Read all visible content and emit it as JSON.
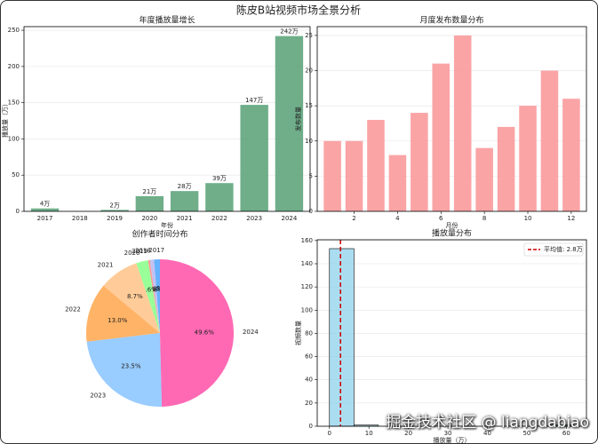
{
  "title": "陈皮B站视频市场全景分析",
  "watermark": "掘金技术社区 @ liangdabiao",
  "chart_data": [
    {
      "type": "bar",
      "title": "年度播放量增长",
      "xlabel": "年份",
      "ylabel": "播放量（万）",
      "categories": [
        "2017",
        "2018",
        "2019",
        "2020",
        "2021",
        "2022",
        "2023",
        "2024"
      ],
      "values": [
        4,
        0,
        2,
        21,
        28,
        39,
        147,
        242
      ],
      "value_labels": [
        "4万",
        null,
        "2万",
        "21万",
        "28万",
        "39万",
        "147万",
        "242万"
      ],
      "color": "#5fa57c",
      "ylim": [
        0,
        255
      ],
      "yticks": [
        0,
        50,
        100,
        150,
        200,
        250
      ],
      "grid": true
    },
    {
      "type": "bar",
      "title": "月度发布数量分布",
      "xlabel": "月份",
      "ylabel": "发布数量",
      "x": [
        1,
        2,
        3,
        4,
        5,
        6,
        7,
        8,
        9,
        10,
        11,
        12
      ],
      "values": [
        10,
        10,
        13,
        8,
        14,
        21,
        25,
        9,
        12,
        15,
        20,
        16
      ],
      "color": "#f99a9c",
      "xlim": [
        0.3,
        12.7
      ],
      "xticks": [
        2,
        4,
        6,
        8,
        10,
        12
      ],
      "ylim": [
        0,
        26.25
      ],
      "yticks": [
        0,
        5,
        10,
        15,
        20,
        25
      ],
      "grid": true
    },
    {
      "type": "pie",
      "title": "创作者时间分布",
      "categories": [
        "2017",
        "2018",
        "2019",
        "2020",
        "2021",
        "2022",
        "2023",
        "2024"
      ],
      "values": [
        1.3,
        0.9,
        0.4,
        2.6,
        8.7,
        13.0,
        23.5,
        49.6
      ],
      "value_labels": [
        "1.3%",
        "0.9%",
        "0.4%",
        "2.6%",
        "8.7%",
        "13.0%",
        "23.5%",
        "49.6%"
      ],
      "colors": [
        "#66b3ff",
        "#c2c2f0",
        "#ff9999",
        "#99ff99",
        "#ffcc99",
        "#ffb366",
        "#99ccff",
        "#ff69b4"
      ]
    },
    {
      "type": "histogram",
      "title": "播放量分布",
      "xlabel": "播放量（万）",
      "ylabel": "视频数量",
      "bins": [
        0,
        6.2,
        12.4,
        18.6,
        24.8,
        31,
        37.2,
        43.4,
        49.6,
        55.8,
        62
      ],
      "values": [
        153,
        1,
        0,
        0,
        0,
        0,
        0,
        0,
        0,
        1
      ],
      "color": "#87ceeb",
      "mean_value": 2.8,
      "mean_label": "平均值: 2.8万",
      "mean_color": "#cc0000",
      "legend": "upper right",
      "xlim": [
        -3.1,
        65.1
      ],
      "xticks": [
        0,
        10,
        20,
        30,
        40,
        50,
        60
      ],
      "ylim": [
        0,
        160.65
      ],
      "yticks": [
        0,
        20,
        40,
        60,
        80,
        100,
        120,
        140,
        160
      ],
      "grid": true
    }
  ]
}
